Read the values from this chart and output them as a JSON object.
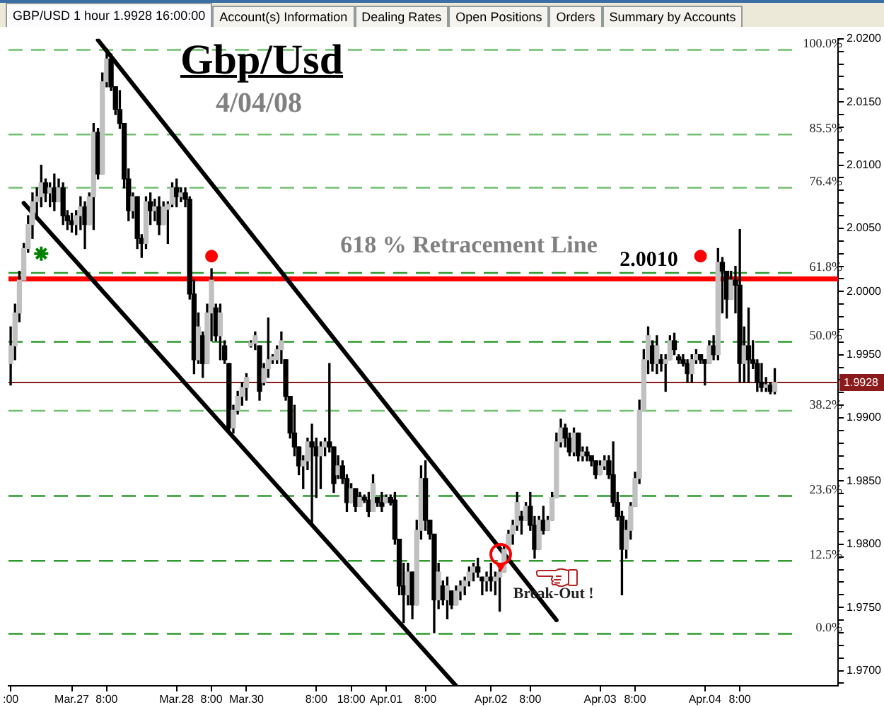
{
  "chart_data": {
    "type": "candlestick",
    "title": "Gbp/Usd",
    "subtitle": "4/04/08",
    "annotations": [
      "GBP/USD 1 hour 1.9928 16:00:00",
      "Account(s) Information",
      "Dealing Rates",
      "Open Positions",
      "Orders",
      "Summary by Accounts",
      {
        "text": "618 % Retracement Line",
        "y": 2.001
      },
      {
        "text": "Break-Out !",
        "y": 1.9792
      }
    ],
    "categories": [
      ":00",
      null,
      null,
      null,
      null,
      null,
      null,
      null,
      null,
      null,
      null,
      null,
      null,
      null,
      "Mar.27",
      null,
      null,
      null,
      null,
      null,
      null,
      null,
      "8:00",
      null,
      null,
      null,
      null,
      null,
      null,
      null,
      null,
      null,
      null,
      null,
      null,
      null,
      null,
      null,
      "Mar.28",
      null,
      null,
      null,
      null,
      null,
      null,
      null,
      "8:00",
      null,
      null,
      null,
      null,
      null,
      null,
      null,
      "Mar.30",
      null,
      null,
      null,
      null,
      null,
      null,
      null,
      null,
      null,
      null,
      null,
      null,
      null,
      null,
      null,
      "8:00",
      null,
      null,
      null,
      null,
      null,
      null,
      null,
      "18:00",
      null,
      null,
      null,
      null,
      null,
      null,
      null,
      "Apr.01",
      null,
      null,
      null,
      null,
      null,
      null,
      null,
      null,
      "8:00",
      null,
      null,
      null,
      null,
      null,
      null,
      null,
      null,
      null,
      null,
      null,
      null,
      null,
      null,
      "Apr.02",
      null,
      null,
      null,
      null,
      null,
      null,
      null,
      null,
      "8:00",
      null,
      null,
      null,
      null,
      null,
      null,
      null,
      null,
      null,
      null,
      null,
      null,
      null,
      null,
      null,
      "Apr.03",
      null,
      null,
      null,
      null,
      null,
      null,
      null,
      "8:00",
      null,
      null,
      null,
      null,
      null,
      null,
      null,
      null,
      null,
      null,
      null,
      null,
      null,
      null,
      null,
      "Apr.04",
      null,
      null,
      null,
      null,
      null,
      null,
      null,
      "8:00",
      null,
      null,
      null,
      null,
      null,
      null,
      null,
      null,
      null,
      null,
      null,
      null,
      null,
      null,
      null,
      null,
      null,
      null,
      null,
      null,
      null,
      null
    ],
    "ohlc": [
      [
        1.9943,
        1.9972,
        1.9926,
        1.9957
      ],
      [
        1.9957,
        1.999,
        1.9946,
        1.9983
      ],
      [
        1.9983,
        2.0016,
        1.9976,
        2.0009
      ],
      [
        2.0009,
        2.0038,
        2.0009,
        2.0034
      ],
      [
        2.0034,
        2.006,
        2.0031,
        2.0053
      ],
      [
        2.0053,
        2.0078,
        2.0042,
        2.0071
      ],
      [
        2.0071,
        2.0082,
        2.006,
        2.0075
      ],
      [
        2.0075,
        2.01,
        2.0067,
        2.0086
      ],
      [
        2.0086,
        2.0089,
        2.0071,
        2.0078
      ],
      [
        2.0078,
        2.0086,
        2.0067,
        2.0082
      ],
      [
        2.0082,
        2.0093,
        2.0064,
        2.0071
      ],
      [
        2.0071,
        2.0089,
        2.0071,
        2.0082
      ],
      [
        2.0082,
        2.0086,
        2.0053,
        2.006
      ],
      [
        2.006,
        2.0064,
        2.0049,
        2.0056
      ],
      [
        2.0056,
        2.0062,
        2.0047,
        2.0053
      ],
      [
        2.0053,
        2.0064,
        2.0045,
        2.006
      ],
      [
        2.006,
        2.0075,
        2.0049,
        2.0067
      ],
      [
        2.0067,
        2.0071,
        2.0034,
        2.0053
      ],
      [
        2.0053,
        2.0078,
        2.0053,
        2.0075
      ],
      [
        2.0075,
        2.0133,
        2.0049,
        2.0126
      ],
      [
        2.0126,
        2.0129,
        2.0089,
        2.0093
      ],
      [
        2.0093,
        2.0173,
        2.0093,
        2.0166
      ],
      [
        2.0166,
        2.0192,
        2.0162,
        2.0184
      ],
      [
        2.0184,
        2.0188,
        2.0159,
        2.0162
      ],
      [
        2.0162,
        2.0162,
        2.014,
        2.0144
      ],
      [
        2.0144,
        2.0159,
        2.0129,
        2.0133
      ],
      [
        2.0133,
        2.0133,
        2.0082,
        2.0089
      ],
      [
        2.0089,
        2.0097,
        2.0056,
        2.0064
      ],
      [
        2.0064,
        2.0078,
        2.0058,
        2.0075
      ],
      [
        2.0075,
        2.0075,
        2.0034,
        2.0042
      ],
      [
        2.0042,
        2.0045,
        2.0027,
        2.0038
      ],
      [
        2.0038,
        2.0075,
        2.0034,
        2.0071
      ],
      [
        2.0071,
        2.0078,
        2.0053,
        2.0064
      ],
      [
        2.0064,
        2.0073,
        2.0056,
        2.0067
      ],
      [
        2.0067,
        2.0075,
        2.0045,
        2.0053
      ],
      [
        2.0053,
        2.0071,
        2.0053,
        2.0067
      ],
      [
        2.0065,
        2.0071,
        2.0038,
        2.0069
      ],
      [
        2.0069,
        2.0086,
        2.0067,
        2.0082
      ],
      [
        2.0082,
        2.0089,
        2.0067,
        2.0075
      ],
      [
        2.0075,
        2.0082,
        2.0071,
        2.0078
      ],
      [
        2.0078,
        2.0082,
        2.0067,
        2.0073
      ],
      [
        2.0073,
        2.0075,
        1.9994,
        1.9998
      ],
      [
        1.9998,
        2.0009,
        1.9935,
        1.9946
      ],
      [
        1.9946,
        1.9983,
        1.9943,
        1.9972
      ],
      [
        1.9965,
        1.9968,
        1.9932,
        1.9943
      ],
      [
        1.9943,
        1.999,
        1.9943,
        1.9983
      ],
      [
        1.9983,
        2.0018,
        1.9961,
        2.0009
      ],
      [
        1.9987,
        1.999,
        1.9961,
        1.9965
      ],
      [
        1.9965,
        1.999,
        1.9946,
        1.9983
      ],
      [
        1.9957,
        1.9961,
        1.9943,
        1.9946
      ],
      [
        1.9943,
        1.9943,
        1.9888,
        1.9892
      ],
      [
        1.9892,
        1.991,
        1.9888,
        1.9906
      ],
      [
        1.9906,
        1.9921,
        1.9903,
        1.9917
      ],
      [
        1.9917,
        1.9928,
        1.991,
        1.9924
      ],
      [
        1.9924,
        1.9935,
        1.9914,
        1.9932
      ],
      [
        1.9957,
        1.9961,
        1.9956,
        1.9959
      ],
      [
        1.9959,
        1.9968,
        1.9954,
        1.9965
      ],
      [
        1.9957,
        1.9957,
        1.9914,
        1.9921
      ],
      [
        1.9928,
        1.9943,
        1.9926,
        1.9939
      ],
      [
        1.9939,
        1.9979,
        1.9932,
        1.9946
      ],
      [
        1.9946,
        1.995,
        1.9943,
        1.9948
      ],
      [
        1.9946,
        1.9957,
        1.9943,
        1.9954
      ],
      [
        1.9954,
        1.9968,
        1.9943,
        1.9961
      ],
      [
        1.9946,
        1.9946,
        1.9914,
        1.9917
      ],
      [
        1.9917,
        1.9917,
        1.9884,
        1.9888
      ],
      [
        1.9888,
        1.991,
        1.987,
        1.9877
      ],
      [
        1.9877,
        1.9877,
        1.9855,
        1.9862
      ],
      [
        1.9862,
        1.987,
        1.9844,
        1.9866
      ],
      [
        1.9866,
        1.9884,
        1.9859,
        1.9881
      ],
      [
        1.9881,
        1.9895,
        1.9815,
        1.9877
      ],
      [
        1.9877,
        1.9884,
        1.9837,
        1.987
      ],
      [
        1.987,
        1.9881,
        1.9844,
        1.9877
      ],
      [
        1.9877,
        1.9884,
        1.987,
        1.9881
      ],
      [
        1.9881,
        1.9943,
        1.9873,
        1.9877
      ],
      [
        1.9877,
        1.9877,
        1.9841,
        1.9848
      ],
      [
        1.9855,
        1.987,
        1.9852,
        1.9862
      ],
      [
        1.9862,
        1.9866,
        1.9848,
        1.9852
      ],
      [
        1.9852,
        1.9855,
        1.9826,
        1.9833
      ],
      [
        1.9833,
        1.9848,
        1.9833,
        1.9844
      ],
      [
        1.9844,
        1.9844,
        1.9826,
        1.983
      ],
      [
        1.983,
        1.9841,
        1.983,
        1.9837
      ],
      [
        1.9837,
        1.9839,
        1.9833,
        1.9835
      ],
      [
        1.9835,
        1.9841,
        1.9822,
        1.9826
      ],
      [
        1.9826,
        1.9855,
        1.9826,
        1.9848
      ],
      [
        1.9837,
        1.9837,
        1.983,
        1.9833
      ],
      [
        1.9833,
        1.9841,
        1.9826,
        1.983
      ],
      [
        1.9833,
        1.9839,
        1.9833,
        1.9837
      ],
      [
        1.9837,
        1.9839,
        1.9831,
        1.9833
      ],
      [
        1.9835,
        1.9841,
        1.98,
        1.9804
      ],
      [
        1.9804,
        1.9804,
        1.976,
        1.9767
      ],
      [
        1.9767,
        1.9785,
        1.9738,
        1.976
      ],
      [
        1.976,
        1.9785,
        1.9752,
        1.9778
      ],
      [
        1.9778,
        1.9778,
        1.9741,
        1.9752
      ],
      [
        1.9752,
        1.9819,
        1.9752,
        1.9811
      ],
      [
        1.9811,
        1.9862,
        1.9804,
        1.9852
      ],
      [
        1.9852,
        1.9866,
        1.9811,
        1.9819
      ],
      [
        1.9819,
        1.9819,
        1.9804,
        1.9808
      ],
      [
        1.9808,
        1.9808,
        1.973,
        1.9756
      ],
      [
        1.9756,
        1.9785,
        1.9749,
        1.9778
      ],
      [
        1.9767,
        1.9771,
        1.9752,
        1.9756
      ],
      [
        1.9756,
        1.9774,
        1.9741,
        1.9767
      ],
      [
        1.9763,
        1.9763,
        1.9749,
        1.9752
      ],
      [
        1.9752,
        1.9767,
        1.9752,
        1.9763
      ],
      [
        1.9763,
        1.9771,
        1.9756,
        1.9767
      ],
      [
        1.9767,
        1.9774,
        1.976,
        1.9771
      ],
      [
        1.9771,
        1.9782,
        1.9767,
        1.9778
      ],
      [
        1.9778,
        1.9785,
        1.9771,
        1.9782
      ],
      [
        1.9782,
        1.9789,
        1.9774,
        1.9778
      ],
      [
        1.9774,
        1.9774,
        1.976,
        1.9771
      ],
      [
        1.9771,
        1.9778,
        1.9763,
        1.9774
      ],
      [
        1.9774,
        1.9785,
        1.9763,
        1.9771
      ],
      [
        1.9771,
        1.9778,
        1.976,
        1.9774
      ],
      [
        1.9774,
        1.9782,
        1.9747,
        1.9778
      ],
      [
        1.9778,
        1.98,
        1.9778,
        1.9796
      ],
      [
        1.9796,
        1.9811,
        1.9796,
        1.9808
      ],
      [
        1.9808,
        1.9819,
        1.98,
        1.9815
      ],
      [
        1.9815,
        1.9841,
        1.9811,
        1.9833
      ],
      [
        1.9822,
        1.9826,
        1.9808,
        1.9819
      ],
      [
        1.9819,
        1.9833,
        1.9819,
        1.983
      ],
      [
        1.983,
        1.9841,
        1.9811,
        1.9815
      ],
      [
        1.9815,
        1.9822,
        1.9789,
        1.9796
      ],
      [
        1.9796,
        1.9822,
        1.9796,
        1.9819
      ],
      [
        1.9819,
        1.983,
        1.9808,
        1.9811
      ],
      [
        1.9811,
        1.9822,
        1.9811,
        1.9819
      ],
      [
        1.9819,
        1.9841,
        1.9819,
        1.9837
      ],
      [
        1.9837,
        1.9888,
        1.9837,
        1.9881
      ],
      [
        1.9881,
        1.9899,
        1.9877,
        1.9892
      ],
      [
        1.9892,
        1.9895,
        1.9877,
        1.9884
      ],
      [
        1.9884,
        1.9888,
        1.987,
        1.9873
      ],
      [
        1.9873,
        1.9892,
        1.987,
        1.9888
      ],
      [
        1.9888,
        1.9888,
        1.9866,
        1.987
      ],
      [
        1.987,
        1.9877,
        1.9866,
        1.9873
      ],
      [
        1.9873,
        1.9877,
        1.9866,
        1.987
      ],
      [
        1.987,
        1.987,
        1.9862,
        1.9866
      ],
      [
        1.9866,
        1.9866,
        1.9852,
        1.9855
      ],
      [
        1.9855,
        1.9866,
        1.9855,
        1.9862
      ],
      [
        1.9862,
        1.987,
        1.9859,
        1.9866
      ],
      [
        1.9866,
        1.987,
        1.9852,
        1.9855
      ],
      [
        1.9855,
        1.9881,
        1.983,
        1.9833
      ],
      [
        1.9833,
        1.9841,
        1.9819,
        1.9822
      ],
      [
        1.9822,
        1.9826,
        1.976,
        1.9796
      ],
      [
        1.9796,
        1.9819,
        1.9789,
        1.9811
      ],
      [
        1.9811,
        1.9833,
        1.9804,
        1.983
      ],
      [
        1.983,
        1.9857,
        1.983,
        1.9852
      ],
      [
        1.9852,
        1.9914,
        1.9848,
        1.9906
      ],
      [
        1.9906,
        1.9954,
        1.9906,
        1.9946
      ],
      [
        1.9946,
        1.9972,
        1.9935,
        1.9965
      ],
      [
        1.9957,
        1.9961,
        1.9937,
        1.9943
      ],
      [
        1.9943,
        1.9965,
        1.9935,
        1.9957
      ],
      [
        1.9946,
        1.995,
        1.9937,
        1.9943
      ],
      [
        1.9943,
        1.995,
        1.9921,
        1.9946
      ],
      [
        1.9946,
        1.9965,
        1.9946,
        1.9961
      ],
      [
        1.9961,
        1.9967,
        1.995,
        1.9954
      ],
      [
        1.9948,
        1.995,
        1.9943,
        1.9946
      ],
      [
        1.9946,
        1.995,
        1.9941,
        1.9943
      ],
      [
        1.9943,
        1.9946,
        1.9928,
        1.9935
      ],
      [
        1.9935,
        1.995,
        1.9928,
        1.9946
      ],
      [
        1.9946,
        1.9954,
        1.9943,
        1.995
      ],
      [
        1.995,
        1.995,
        1.9943,
        1.9946
      ],
      [
        1.9946,
        1.9946,
        1.9926,
        1.9943
      ],
      [
        1.9943,
        1.9961,
        1.9943,
        1.9957
      ],
      [
        1.9957,
        1.9965,
        1.9946,
        1.995
      ],
      [
        1.995,
        2.0034,
        1.9946,
        2.0023
      ],
      [
        2.0023,
        2.0027,
        1.9983,
        2.0016
      ],
      [
        2.0016,
        2.0016,
        1.9979,
        1.9994
      ],
      [
        1.9994,
        2.0016,
        1.9994,
        2.0009
      ],
      [
        2.0009,
        2.002,
        1.9983,
        2.0005
      ],
      [
        2.0005,
        2.0049,
        1.9928,
        1.9943
      ],
      [
        1.9943,
        1.9972,
        1.9928,
        1.9957
      ],
      [
        1.9957,
        1.9987,
        1.9928,
        1.9946
      ],
      [
        1.9946,
        1.9961,
        1.9939,
        1.9943
      ],
      [
        1.9943,
        1.9946,
        1.9921,
        1.9928
      ],
      [
        1.9928,
        1.9943,
        1.9921,
        1.9924
      ],
      [
        1.9924,
        1.9932,
        1.9921,
        1.9926
      ],
      [
        1.9926,
        1.9928,
        1.9919,
        1.9921
      ],
      [
        1.9921,
        1.9939,
        1.9919,
        1.9928
      ],
      null,
      null,
      null,
      null,
      null,
      null,
      null,
      null,
      null,
      null,
      null,
      null,
      null,
      null
    ],
    "colors": [
      "#c0c0c0",
      "#c0c0c0",
      "#c0c0c0",
      "#c0c0c0",
      "#c0c0c0",
      "#c0c0c0",
      "#c0c0c0",
      "#c0c0c0",
      "#000000",
      "#c0c0c0",
      "#000000",
      "#c0c0c0",
      "#000000",
      "#000000",
      "#000000",
      "#c0c0c0",
      "#c0c0c0",
      "#000000",
      "#c0c0c0",
      "#c0c0c0",
      "#000000",
      "#c0c0c0",
      "#c0c0c0",
      "#000000",
      "#000000",
      "#000000",
      "#000000",
      "#000000",
      "#c0c0c0",
      "#000000",
      "#000000",
      "#c0c0c0",
      "#000000",
      "#c0c0c0",
      "#000000",
      "#c0c0c0",
      "#c0c0c0",
      "#c0c0c0",
      "#000000",
      "#c0c0c0",
      "#000000",
      "#000000",
      "#000000",
      "#c0c0c0",
      "#000000",
      "#c0c0c0",
      "#c0c0c0",
      "#000000",
      "#c0c0c0",
      "#000000",
      "#000000",
      "#c0c0c0",
      "#c0c0c0",
      "#c0c0c0",
      "#c0c0c0",
      "#c0c0c0",
      "#c0c0c0",
      "#000000",
      "#c0c0c0",
      "#c0c0c0",
      "#c0c0c0",
      "#c0c0c0",
      "#c0c0c0",
      "#000000",
      "#000000",
      "#000000",
      "#000000",
      "#c0c0c0",
      "#c0c0c0",
      "#000000",
      "#000000",
      "#c0c0c0",
      "#c0c0c0",
      "#000000",
      "#000000",
      "#c0c0c0",
      "#000000",
      "#000000",
      "#c0c0c0",
      "#000000",
      "#c0c0c0",
      "#000000",
      "#000000",
      "#c0c0c0",
      "#000000",
      "#000000",
      "#c0c0c0",
      "#000000",
      "#000000",
      "#000000",
      "#000000",
      "#c0c0c0",
      "#000000",
      "#c0c0c0",
      "#c0c0c0",
      "#000000",
      "#000000",
      "#000000",
      "#c0c0c0",
      "#000000",
      "#c0c0c0",
      "#000000",
      "#c0c0c0",
      "#c0c0c0",
      "#c0c0c0",
      "#c0c0c0",
      "#c0c0c0",
      "#000000",
      "#000000",
      "#c0c0c0",
      "#000000",
      "#c0c0c0",
      "#c0c0c0",
      "#c0c0c0",
      "#c0c0c0",
      "#c0c0c0",
      "#c0c0c0",
      "#000000",
      "#c0c0c0",
      "#000000",
      "#000000",
      "#c0c0c0",
      "#000000",
      "#c0c0c0",
      "#c0c0c0",
      "#c0c0c0",
      "#c0c0c0",
      "#000000",
      "#000000",
      "#c0c0c0",
      "#000000",
      "#c0c0c0",
      "#000000",
      "#000000",
      "#000000",
      "#c0c0c0",
      "#c0c0c0",
      "#000000",
      "#000000",
      "#000000",
      "#000000",
      "#c0c0c0",
      "#c0c0c0",
      "#c0c0c0",
      "#c0c0c0",
      "#c0c0c0",
      "#c0c0c0",
      "#000000",
      "#c0c0c0",
      "#000000",
      "#c0c0c0",
      "#c0c0c0",
      "#000000",
      "#000000",
      "#000000",
      "#000000",
      "#c0c0c0",
      "#c0c0c0",
      "#000000",
      "#000000",
      "#c0c0c0",
      "#000000",
      "#c0c0c0",
      "#000000",
      "#000000",
      "#c0c0c0",
      "#000000",
      "#000000",
      "#c0c0c0",
      "#000000",
      "#000000",
      "#000000",
      "#000000",
      "#c0c0c0",
      "#000000",
      "#c0c0c0",
      null,
      null,
      null,
      null,
      null,
      null,
      null,
      null,
      null,
      null,
      null,
      null,
      null,
      null
    ],
    "series": [
      {
        "type": "line",
        "color": "#000000",
        "values": [
          null,
          null,
          null,
          null,
          null,
          null,
          null,
          null,
          null,
          null,
          null,
          null,
          null,
          null,
          null,
          null,
          null,
          null,
          null,
          null,
          2.0199,
          null,
          null,
          null,
          null,
          null,
          null,
          null,
          null,
          null,
          null,
          null,
          null,
          null,
          null,
          null,
          null,
          null,
          null,
          null,
          null,
          null,
          null,
          null,
          null,
          null,
          null,
          null,
          null,
          null,
          null,
          null,
          null,
          null,
          null,
          null,
          null,
          null,
          null,
          null,
          null,
          null,
          null,
          null,
          null,
          null,
          null,
          null,
          null,
          null,
          null,
          null,
          null,
          null,
          null,
          null,
          null,
          null,
          null,
          null,
          null,
          null,
          null,
          null,
          null,
          null,
          null,
          null,
          null,
          null,
          null,
          null,
          null,
          null,
          null,
          null,
          null,
          null,
          null,
          null,
          null,
          null,
          null,
          null,
          null,
          null,
          null,
          null,
          null,
          null,
          null,
          null,
          null,
          null,
          null,
          null,
          null,
          null,
          null,
          null,
          null,
          null,
          null,
          null,
          null,
          1.974,
          null,
          null,
          null,
          null,
          null,
          null,
          null,
          null,
          null,
          null,
          null,
          null,
          null,
          null,
          null,
          null,
          null,
          null,
          null,
          null,
          null,
          null,
          null,
          null,
          null,
          null,
          null,
          null,
          null,
          null,
          null,
          null,
          null,
          null,
          null,
          null,
          null,
          null,
          null,
          null,
          null,
          null,
          null,
          null,
          null,
          null,
          null,
          null,
          null,
          null,
          null,
          null,
          null,
          null,
          null,
          null,
          null,
          null,
          null,
          null,
          null,
          null,
          null,
          null
        ]
      },
      {
        "type": "line",
        "color": "#000000",
        "values": [
          null,
          null,
          null,
          2.007,
          null,
          null,
          null,
          null,
          null,
          null,
          null,
          null,
          null,
          null,
          null,
          null,
          null,
          null,
          null,
          null,
          null,
          null,
          null,
          null,
          null,
          null,
          null,
          null,
          null,
          null,
          null,
          null,
          null,
          null,
          null,
          null,
          null,
          null,
          null,
          null,
          null,
          null,
          null,
          null,
          null,
          null,
          null,
          null,
          null,
          null,
          null,
          null,
          null,
          null,
          null,
          null,
          null,
          null,
          null,
          null,
          null,
          null,
          null,
          null,
          null,
          null,
          null,
          null,
          null,
          null,
          null,
          null,
          null,
          null,
          null,
          null,
          null,
          null,
          null,
          null,
          null,
          null,
          null,
          null,
          null,
          null,
          null,
          null,
          null,
          null,
          null,
          null,
          null,
          null,
          null,
          null,
          null,
          null,
          null,
          null,
          null,
          null,
          1.9688,
          null,
          null,
          null,
          null,
          null,
          null,
          null,
          null,
          null,
          null,
          null,
          null,
          null,
          null,
          null,
          null,
          null,
          null,
          null,
          null,
          null,
          null,
          null,
          null,
          null,
          null,
          null,
          null,
          null,
          null,
          null,
          null,
          null,
          null,
          null,
          null,
          null,
          null,
          null,
          null,
          null,
          null,
          null,
          null,
          null,
          null,
          null,
          null,
          null,
          null,
          null,
          null,
          null,
          null,
          null,
          null,
          null,
          null,
          null,
          null,
          null,
          null,
          null,
          null,
          null,
          null,
          null,
          null,
          null,
          null,
          null,
          null,
          null,
          null,
          null,
          null,
          null,
          null,
          null,
          null,
          null,
          null,
          null,
          null,
          null,
          null,
          null
        ]
      },
      {
        "type": "scatter",
        "color": "#ff0000",
        "marker": "circle",
        "values": [
          null,
          null,
          null,
          null,
          null,
          null,
          null,
          null,
          null,
          null,
          null,
          null,
          null,
          null,
          null,
          null,
          null,
          null,
          null,
          null,
          null,
          null,
          null,
          null,
          null,
          null,
          null,
          null,
          null,
          null,
          null,
          null,
          null,
          null,
          null,
          null,
          null,
          null,
          null,
          null,
          null,
          null,
          null,
          null,
          null,
          null,
          2.0028,
          null,
          null,
          null,
          null,
          null,
          null,
          null,
          null,
          null,
          null,
          null,
          null,
          null,
          null,
          null,
          null,
          null,
          null,
          null,
          null,
          null,
          null,
          null,
          null,
          null,
          null,
          null,
          null,
          null,
          null,
          null,
          null,
          null,
          null,
          null,
          null,
          null,
          null,
          null,
          null,
          null,
          null,
          null,
          null,
          null,
          null,
          null,
          null,
          null,
          null,
          null,
          null,
          null,
          null,
          null,
          null,
          null,
          null,
          null,
          null,
          null,
          null,
          null,
          null,
          null,
          null,
          null,
          null,
          null,
          null,
          null,
          null,
          null,
          null,
          null,
          null,
          null,
          null,
          null,
          null,
          null,
          null,
          null,
          null,
          null,
          null,
          null,
          null,
          null,
          null,
          null,
          null,
          null,
          null,
          null,
          null,
          null,
          null,
          null,
          null,
          null,
          null,
          null,
          null,
          null,
          null,
          null,
          null,
          null,
          null,
          null,
          2.0028,
          null,
          null,
          null,
          null,
          null,
          null,
          null,
          null,
          null,
          null,
          null,
          null,
          null,
          null,
          null,
          null,
          null,
          null,
          null,
          null,
          null,
          null,
          null,
          null,
          null,
          null,
          null,
          null,
          null,
          null,
          null
        ]
      },
      {
        "type": "scatter",
        "color": "#008000",
        "marker": "cross",
        "values": [
          null,
          null,
          null,
          null,
          null,
          null,
          null,
          2.003,
          null,
          null,
          null,
          null,
          null,
          null,
          null,
          null,
          null,
          null,
          null,
          null,
          null,
          null,
          null,
          null,
          null,
          null,
          null,
          null,
          null,
          null,
          null,
          null,
          null,
          null,
          null,
          null,
          null,
          null,
          null,
          null,
          null,
          null,
          null,
          null,
          null,
          null,
          null,
          null,
          null,
          null,
          null,
          null,
          null,
          null,
          null,
          null,
          null,
          null,
          null,
          null,
          null,
          null,
          null,
          null,
          null,
          null,
          null,
          null,
          null,
          null,
          null,
          null,
          null,
          null,
          null,
          null,
          null,
          null,
          null,
          null,
          null,
          null,
          null,
          null,
          null,
          null,
          null,
          null,
          null,
          null,
          null,
          null,
          null,
          null,
          null,
          null,
          null,
          null,
          null,
          null,
          null,
          null,
          null,
          null,
          null,
          null,
          null,
          null,
          null,
          null,
          null,
          null,
          null,
          null,
          null,
          null,
          null,
          null,
          null,
          null,
          null,
          null,
          null,
          null,
          null,
          null,
          null,
          null,
          null,
          null,
          null,
          null,
          null,
          null,
          null,
          null,
          null,
          null,
          null,
          null,
          null,
          null,
          null,
          null,
          null,
          null,
          null,
          null,
          null,
          null,
          null,
          null,
          null,
          null,
          null,
          null,
          null,
          null,
          null,
          null,
          null,
          null,
          null,
          null,
          null,
          null,
          null,
          null,
          null,
          null,
          null,
          null,
          null,
          null,
          null,
          null,
          null,
          null,
          null,
          null,
          null,
          null,
          null,
          null,
          null,
          null,
          null,
          null,
          null,
          null
        ]
      }
    ],
    "ylim": [
      1.9688,
      2.02
    ],
    "yticks": [
      {
        "value": 1.969,
        "label": null
      },
      {
        "value": 1.97,
        "label": "1.9700"
      },
      {
        "value": 1.971,
        "label": null
      },
      {
        "value": 1.972,
        "label": null
      },
      {
        "value": 1.973,
        "label": null
      },
      {
        "value": 1.974,
        "label": null
      },
      {
        "value": 1.975,
        "label": "1.9750"
      },
      {
        "value": 1.976,
        "label": null
      },
      {
        "value": 1.977,
        "label": null
      },
      {
        "value": 1.978,
        "label": null
      },
      {
        "value": 1.979,
        "label": null
      },
      {
        "value": 1.98,
        "label": "1.9800"
      },
      {
        "value": 1.981,
        "label": null
      },
      {
        "value": 1.982,
        "label": null
      },
      {
        "value": 1.983,
        "label": null
      },
      {
        "value": 1.984,
        "label": null
      },
      {
        "value": 1.985,
        "label": "1.9850"
      },
      {
        "value": 1.986,
        "label": null
      },
      {
        "value": 1.987,
        "label": null
      },
      {
        "value": 1.988,
        "label": null
      },
      {
        "value": 1.989,
        "label": null
      },
      {
        "value": 1.99,
        "label": "1.9900"
      },
      {
        "value": 1.991,
        "label": null
      },
      {
        "value": 1.992,
        "label": null
      },
      {
        "value": 1.993,
        "label": null
      },
      {
        "value": 1.994,
        "label": null
      },
      {
        "value": 1.995,
        "label": "1.9950"
      },
      {
        "value": 1.996,
        "label": null
      },
      {
        "value": 1.997,
        "label": null
      },
      {
        "value": 1.998,
        "label": null
      },
      {
        "value": 1.999,
        "label": null
      },
      {
        "value": 2.0,
        "label": "2.0000"
      },
      {
        "value": 2.001,
        "label": null
      },
      {
        "value": 2.002,
        "label": null
      },
      {
        "value": 2.003,
        "label": null
      },
      {
        "value": 2.004,
        "label": null
      },
      {
        "value": 2.005,
        "label": "2.0050"
      },
      {
        "value": 2.006,
        "label": null
      },
      {
        "value": 2.007,
        "label": null
      },
      {
        "value": 2.008,
        "label": null
      },
      {
        "value": 2.009,
        "label": null
      },
      {
        "value": 2.01,
        "label": "2.0100"
      },
      {
        "value": 2.011,
        "label": null
      },
      {
        "value": 2.012,
        "label": null
      },
      {
        "value": 2.013,
        "label": null
      },
      {
        "value": 2.014,
        "label": null
      },
      {
        "value": 2.015,
        "label": "2.0150"
      },
      {
        "value": 2.016,
        "label": null
      },
      {
        "value": 2.017,
        "label": null
      },
      {
        "value": 2.018,
        "label": null
      },
      {
        "value": 2.019,
        "label": null
      },
      {
        "value": 2.02,
        "label": "2.0200"
      }
    ],
    "y2lim": [
      -8.9,
      101.9
    ],
    "y2ticks": [
      {
        "value": 0,
        "label": "0.0%"
      },
      {
        "value": 12.5,
        "label": "12.5%"
      },
      {
        "value": 23.6,
        "label": "23.6%"
      },
      {
        "value": 38.2,
        "label": "38.2%"
      },
      {
        "value": 50,
        "label": "50.0%"
      },
      {
        "value": 61.8,
        "label": "61.8%"
      },
      {
        "value": 76.4,
        "label": "76.4%"
      },
      {
        "value": 85.5,
        "label": "85.5%"
      },
      {
        "value": 100,
        "label": "100.0%"
      }
    ],
    "ref_lines": [
      {
        "axis": "y2",
        "value": 100,
        "color": "#70c070",
        "line_style": "dashed"
      },
      {
        "axis": "y2",
        "value": 85.5,
        "color": "#70c070",
        "line_style": "dashed"
      },
      {
        "axis": "y2",
        "value": 76.4,
        "color": "#70c070",
        "line_style": "dashed"
      },
      {
        "axis": "y2",
        "value": 61.8,
        "color": "#2e9a2e",
        "line_style": "dashed"
      },
      {
        "axis": "y2",
        "value": 50,
        "color": "#2e9a2e",
        "line_style": "dashed"
      },
      {
        "axis": "y2",
        "value": 38.2,
        "color": "#70c070",
        "line_style": "dashed"
      },
      {
        "axis": "y2",
        "value": 23.6,
        "color": "#2e9a2e",
        "line_style": "dashed"
      },
      {
        "axis": "y2",
        "value": 12.5,
        "color": "#2e9a2e",
        "line_style": "dashed"
      },
      {
        "axis": "y2",
        "value": 0,
        "color": "#2e9a2e",
        "line_style": "dashed"
      },
      {
        "axis": "y",
        "value": 2.001,
        "label": "2.0010",
        "color": "#ff0000",
        "line_style": "solid"
      },
      {
        "axis": "y",
        "value": 1.9928,
        "label": "1.9928",
        "color": "#8b1a1a",
        "line_style": "solid"
      }
    ]
  }
}
